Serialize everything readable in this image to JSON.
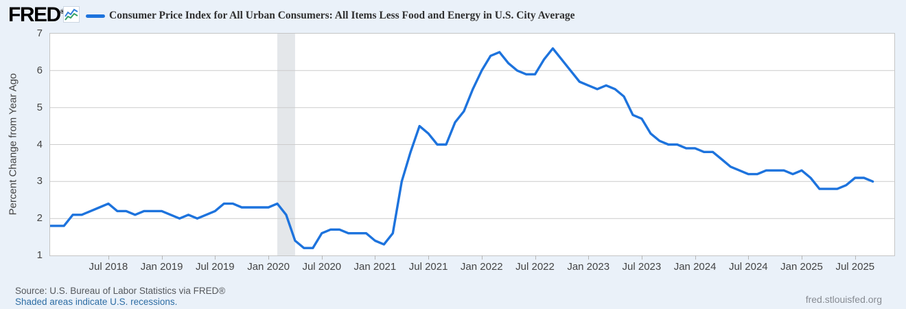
{
  "header": {
    "logo_text": "FRED",
    "registered_mark": "®",
    "title": "Consumer Price Index for All Urban Consumers: All Items Less Food and Energy in U.S. City Average"
  },
  "colors": {
    "series_blue": "#1d73dd",
    "recession_shade": "#e4e7ea",
    "gridline": "#cccccc",
    "background": "#eaf1f9",
    "link_blue": "#2d6da4",
    "icon_line_blue": "#2f7ed8",
    "icon_line_green": "#33a164"
  },
  "chart_data": {
    "type": "line",
    "title": "Consumer Price Index for All Urban Consumers: All Items Less Food and Energy in U.S. City Average",
    "xlabel": "",
    "ylabel": "Percent Change from Year Ago",
    "ylim": [
      1,
      7
    ],
    "y_ticks": [
      1,
      2,
      3,
      4,
      5,
      6,
      7
    ],
    "grid": true,
    "frequency": "monthly",
    "x_start": "Dec 2017",
    "x_end": "Sep 2025",
    "x_tick_labels": [
      "Jul 2018",
      "Jan 2019",
      "Jul 2019",
      "Jan 2020",
      "Jul 2020",
      "Jan 2021",
      "Jul 2021",
      "Jan 2022",
      "Jul 2022",
      "Jan 2023",
      "Jul 2023",
      "Jan 2024",
      "Jul 2024",
      "Jan 2025",
      "Jul 2025"
    ],
    "x_tick_month_offsets": [
      7,
      13,
      19,
      25,
      31,
      37,
      43,
      49,
      55,
      61,
      67,
      73,
      79,
      85,
      91
    ],
    "series": [
      {
        "name": "Consumer Price Index for All Urban Consumers: All Items Less Food and Energy in U.S. City Average",
        "color": "#1d73dd",
        "values": [
          1.8,
          1.8,
          1.8,
          2.1,
          2.1,
          2.2,
          2.3,
          2.4,
          2.2,
          2.2,
          2.1,
          2.2,
          2.2,
          2.2,
          2.1,
          2.0,
          2.1,
          2.0,
          2.1,
          2.2,
          2.4,
          2.4,
          2.3,
          2.3,
          2.3,
          2.3,
          2.4,
          2.1,
          1.4,
          1.2,
          1.2,
          1.6,
          1.7,
          1.7,
          1.6,
          1.6,
          1.6,
          1.4,
          1.3,
          1.6,
          3.0,
          3.8,
          4.5,
          4.3,
          4.0,
          4.0,
          4.6,
          4.9,
          5.5,
          6.0,
          6.4,
          6.5,
          6.2,
          6.0,
          5.9,
          5.9,
          6.3,
          6.6,
          6.3,
          6.0,
          5.7,
          5.6,
          5.5,
          5.6,
          5.5,
          5.3,
          4.8,
          4.7,
          4.3,
          4.1,
          4.0,
          4.0,
          3.9,
          3.9,
          3.8,
          3.8,
          3.6,
          3.4,
          3.3,
          3.2,
          3.2,
          3.3,
          3.3,
          3.3,
          3.2,
          3.3,
          3.1,
          2.8,
          2.8,
          2.8,
          2.9,
          3.1,
          3.1,
          3.0
        ]
      }
    ],
    "recession_shading": {
      "label": "U.S. recession",
      "start": "Feb 2020",
      "end": "Apr 2020",
      "start_month_offset": 26,
      "end_month_offset": 28
    }
  },
  "footer": {
    "source_text": "Source: U.S. Bureau of Labor Statistics via FRED®",
    "recession_note": "Shaded areas indicate U.S. recessions.",
    "site_url": "fred.stlouisfed.org"
  }
}
